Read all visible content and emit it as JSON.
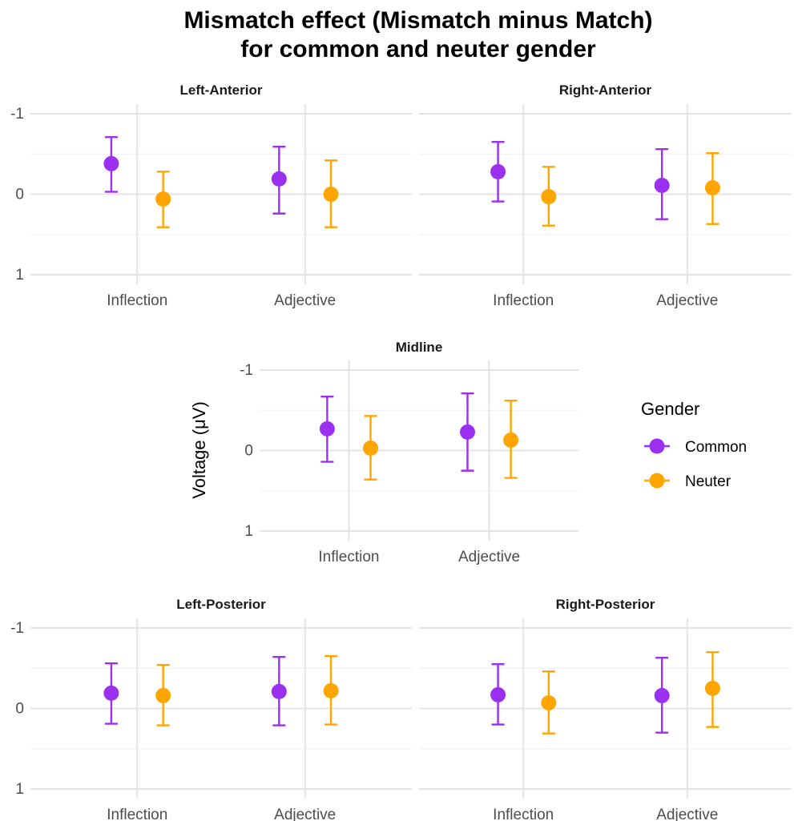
{
  "chart_data": {
    "type": "scatter",
    "title_lines": [
      "Mismatch effect (Mismatch minus Match)",
      "for common and neuter gender"
    ],
    "ylabel": "Voltage (μV)",
    "y_reversed": true,
    "ylim": [
      -1,
      1
    ],
    "yticks": [
      "-1",
      "0",
      "1"
    ],
    "categories": [
      "Inflection",
      "Adjective"
    ],
    "grid": true,
    "legend": {
      "title": "Gender",
      "position": "right",
      "entries": [
        {
          "name": "Common",
          "color": "#9B30F0"
        },
        {
          "name": "Neuter",
          "color": "#FFA500"
        }
      ]
    },
    "panels": [
      {
        "label": "Left-Anterior",
        "series": [
          {
            "name": "Common",
            "points": [
              {
                "x": "Inflection",
                "y": -0.38,
                "lo": -0.71,
                "hi": -0.03
              },
              {
                "x": "Adjective",
                "y": -0.19,
                "lo": -0.59,
                "hi": 0.24
              }
            ]
          },
          {
            "name": "Neuter",
            "points": [
              {
                "x": "Inflection",
                "y": 0.06,
                "lo": -0.28,
                "hi": 0.41
              },
              {
                "x": "Adjective",
                "y": 0.0,
                "lo": -0.42,
                "hi": 0.41
              }
            ]
          }
        ]
      },
      {
        "label": "Right-Anterior",
        "series": [
          {
            "name": "Common",
            "points": [
              {
                "x": "Inflection",
                "y": -0.28,
                "lo": -0.65,
                "hi": 0.09
              },
              {
                "x": "Adjective",
                "y": -0.11,
                "lo": -0.56,
                "hi": 0.31
              }
            ]
          },
          {
            "name": "Neuter",
            "points": [
              {
                "x": "Inflection",
                "y": 0.03,
                "lo": -0.34,
                "hi": 0.39
              },
              {
                "x": "Adjective",
                "y": -0.08,
                "lo": -0.51,
                "hi": 0.37
              }
            ]
          }
        ]
      },
      {
        "label": "Midline",
        "series": [
          {
            "name": "Common",
            "points": [
              {
                "x": "Inflection",
                "y": -0.27,
                "lo": -0.67,
                "hi": 0.14
              },
              {
                "x": "Adjective",
                "y": -0.23,
                "lo": -0.71,
                "hi": 0.25
              }
            ]
          },
          {
            "name": "Neuter",
            "points": [
              {
                "x": "Inflection",
                "y": -0.03,
                "lo": -0.43,
                "hi": 0.36
              },
              {
                "x": "Adjective",
                "y": -0.13,
                "lo": -0.62,
                "hi": 0.34
              }
            ]
          }
        ]
      },
      {
        "label": "Left-Posterior",
        "series": [
          {
            "name": "Common",
            "points": [
              {
                "x": "Inflection",
                "y": -0.19,
                "lo": -0.56,
                "hi": 0.19
              },
              {
                "x": "Adjective",
                "y": -0.21,
                "lo": -0.64,
                "hi": 0.21
              }
            ]
          },
          {
            "name": "Neuter",
            "points": [
              {
                "x": "Inflection",
                "y": -0.16,
                "lo": -0.54,
                "hi": 0.21
              },
              {
                "x": "Adjective",
                "y": -0.22,
                "lo": -0.65,
                "hi": 0.2
              }
            ]
          }
        ]
      },
      {
        "label": "Right-Posterior",
        "series": [
          {
            "name": "Common",
            "points": [
              {
                "x": "Inflection",
                "y": -0.17,
                "lo": -0.55,
                "hi": 0.2
              },
              {
                "x": "Adjective",
                "y": -0.16,
                "lo": -0.63,
                "hi": 0.3
              }
            ]
          },
          {
            "name": "Neuter",
            "points": [
              {
                "x": "Inflection",
                "y": -0.07,
                "lo": -0.46,
                "hi": 0.31
              },
              {
                "x": "Adjective",
                "y": -0.25,
                "lo": -0.7,
                "hi": 0.23
              }
            ]
          }
        ]
      }
    ]
  }
}
